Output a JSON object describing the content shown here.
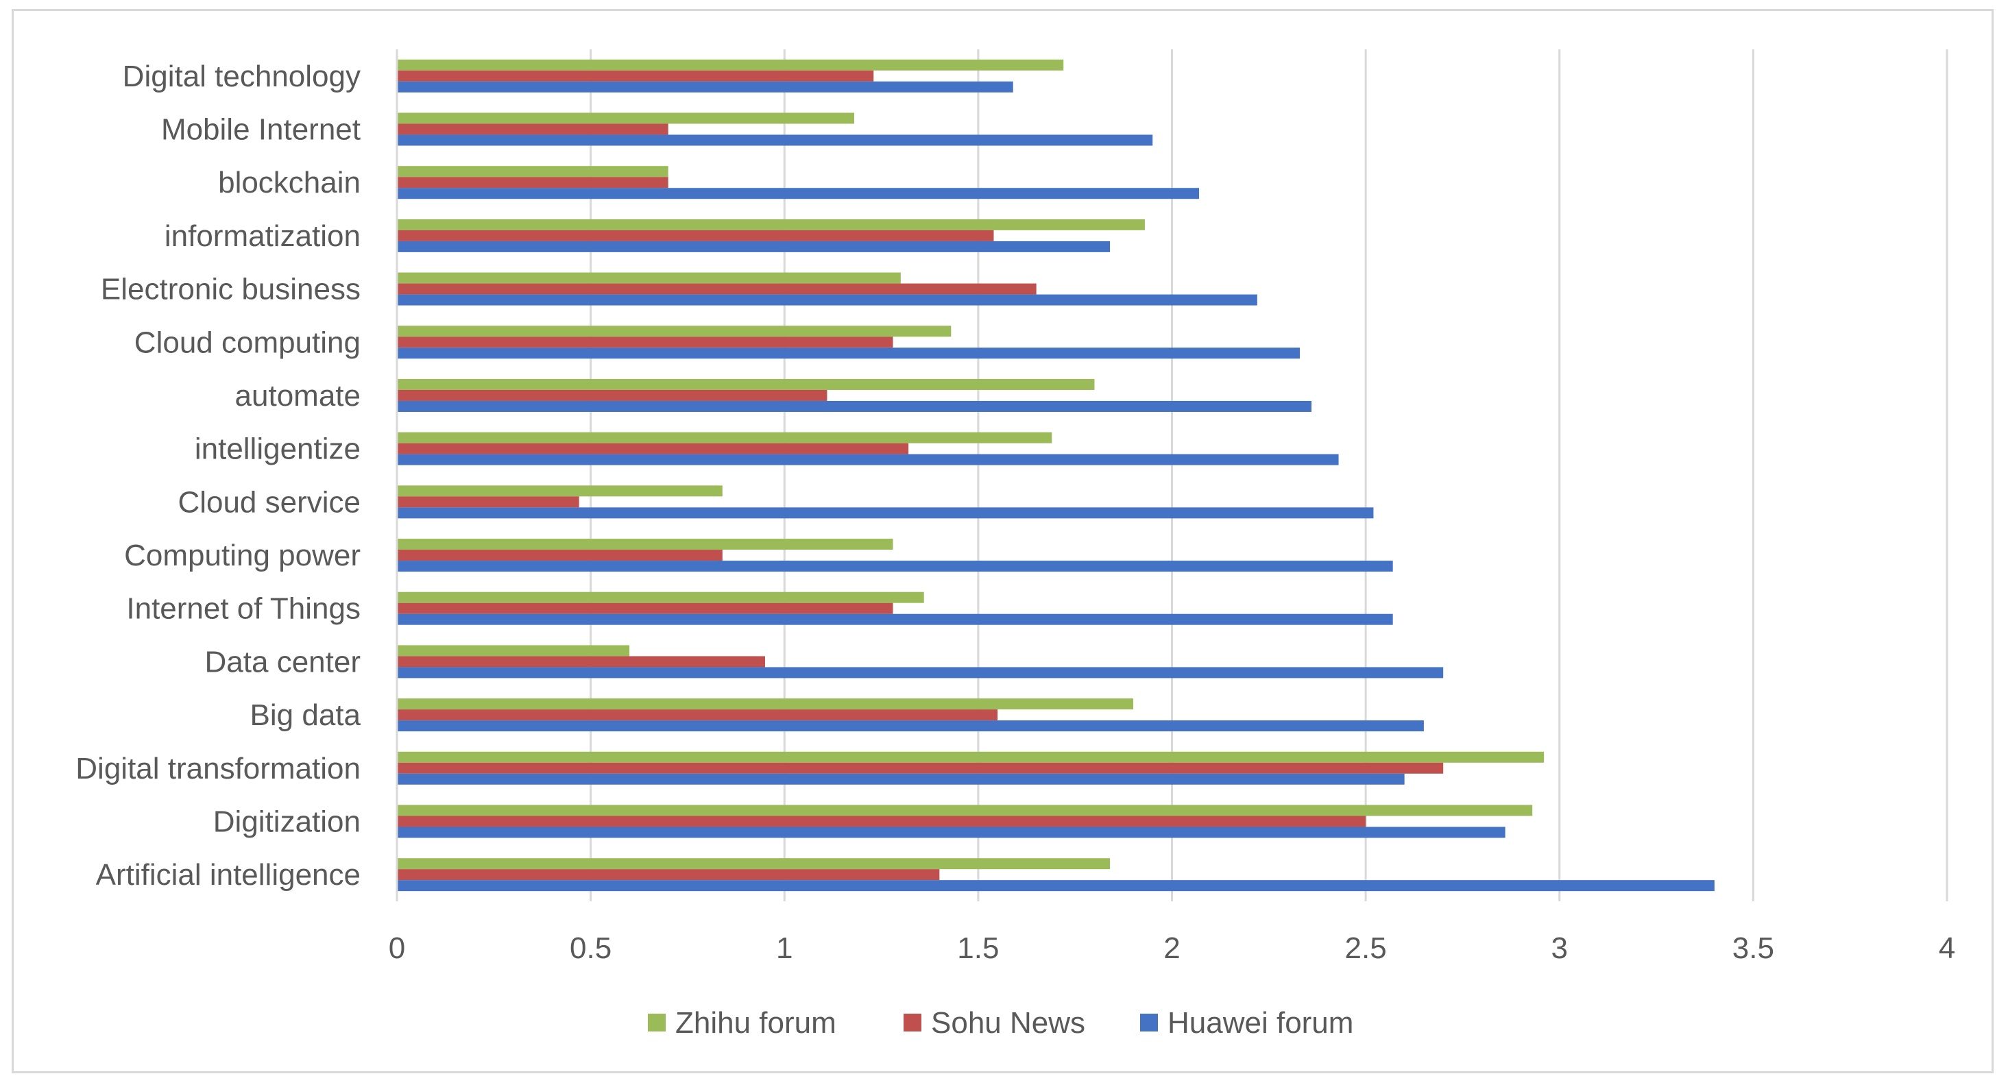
{
  "chart_data": {
    "type": "bar",
    "orientation": "horizontal",
    "title": "",
    "xlabel": "",
    "ylabel": "",
    "xlim": [
      0,
      4
    ],
    "x_ticks": [
      0,
      0.5,
      1,
      1.5,
      2,
      2.5,
      3,
      3.5,
      4
    ],
    "x_tick_labels": [
      "0",
      "0.5",
      "1",
      "1.5",
      "2",
      "2.5",
      "3",
      "3.5",
      "4"
    ],
    "grid": "vertical",
    "legend_position": "bottom",
    "categories": [
      "Artificial intelligence",
      "Digitization",
      "Digital transformation",
      "Big data",
      "Data center",
      "Internet of Things",
      "Computing power",
      "Cloud service",
      "intelligentize",
      "automate",
      "Cloud computing",
      "Electronic business",
      "informatization",
      "blockchain",
      "Mobile Internet",
      "Digital technology"
    ],
    "series": [
      {
        "name": "Huawei forum",
        "color": "#4472c4",
        "values": [
          3.4,
          2.86,
          2.6,
          2.65,
          2.7,
          2.57,
          2.57,
          2.52,
          2.43,
          2.36,
          2.33,
          2.22,
          1.84,
          2.07,
          1.95,
          1.59
        ]
      },
      {
        "name": "Sohu News",
        "color": "#c0504d",
        "values": [
          1.4,
          2.5,
          2.7,
          1.55,
          0.95,
          1.28,
          0.84,
          0.47,
          1.32,
          1.11,
          1.28,
          1.65,
          1.54,
          0.7,
          0.7,
          1.23
        ]
      },
      {
        "name": "Zhihu forum",
        "color": "#9bbb59",
        "values": [
          1.84,
          2.93,
          2.96,
          1.9,
          0.6,
          1.36,
          1.28,
          0.84,
          1.69,
          1.8,
          1.43,
          1.3,
          1.93,
          0.7,
          1.18,
          1.72
        ]
      }
    ],
    "legend_order": [
      "Zhihu forum",
      "Sohu News",
      "Huawei forum"
    ]
  }
}
